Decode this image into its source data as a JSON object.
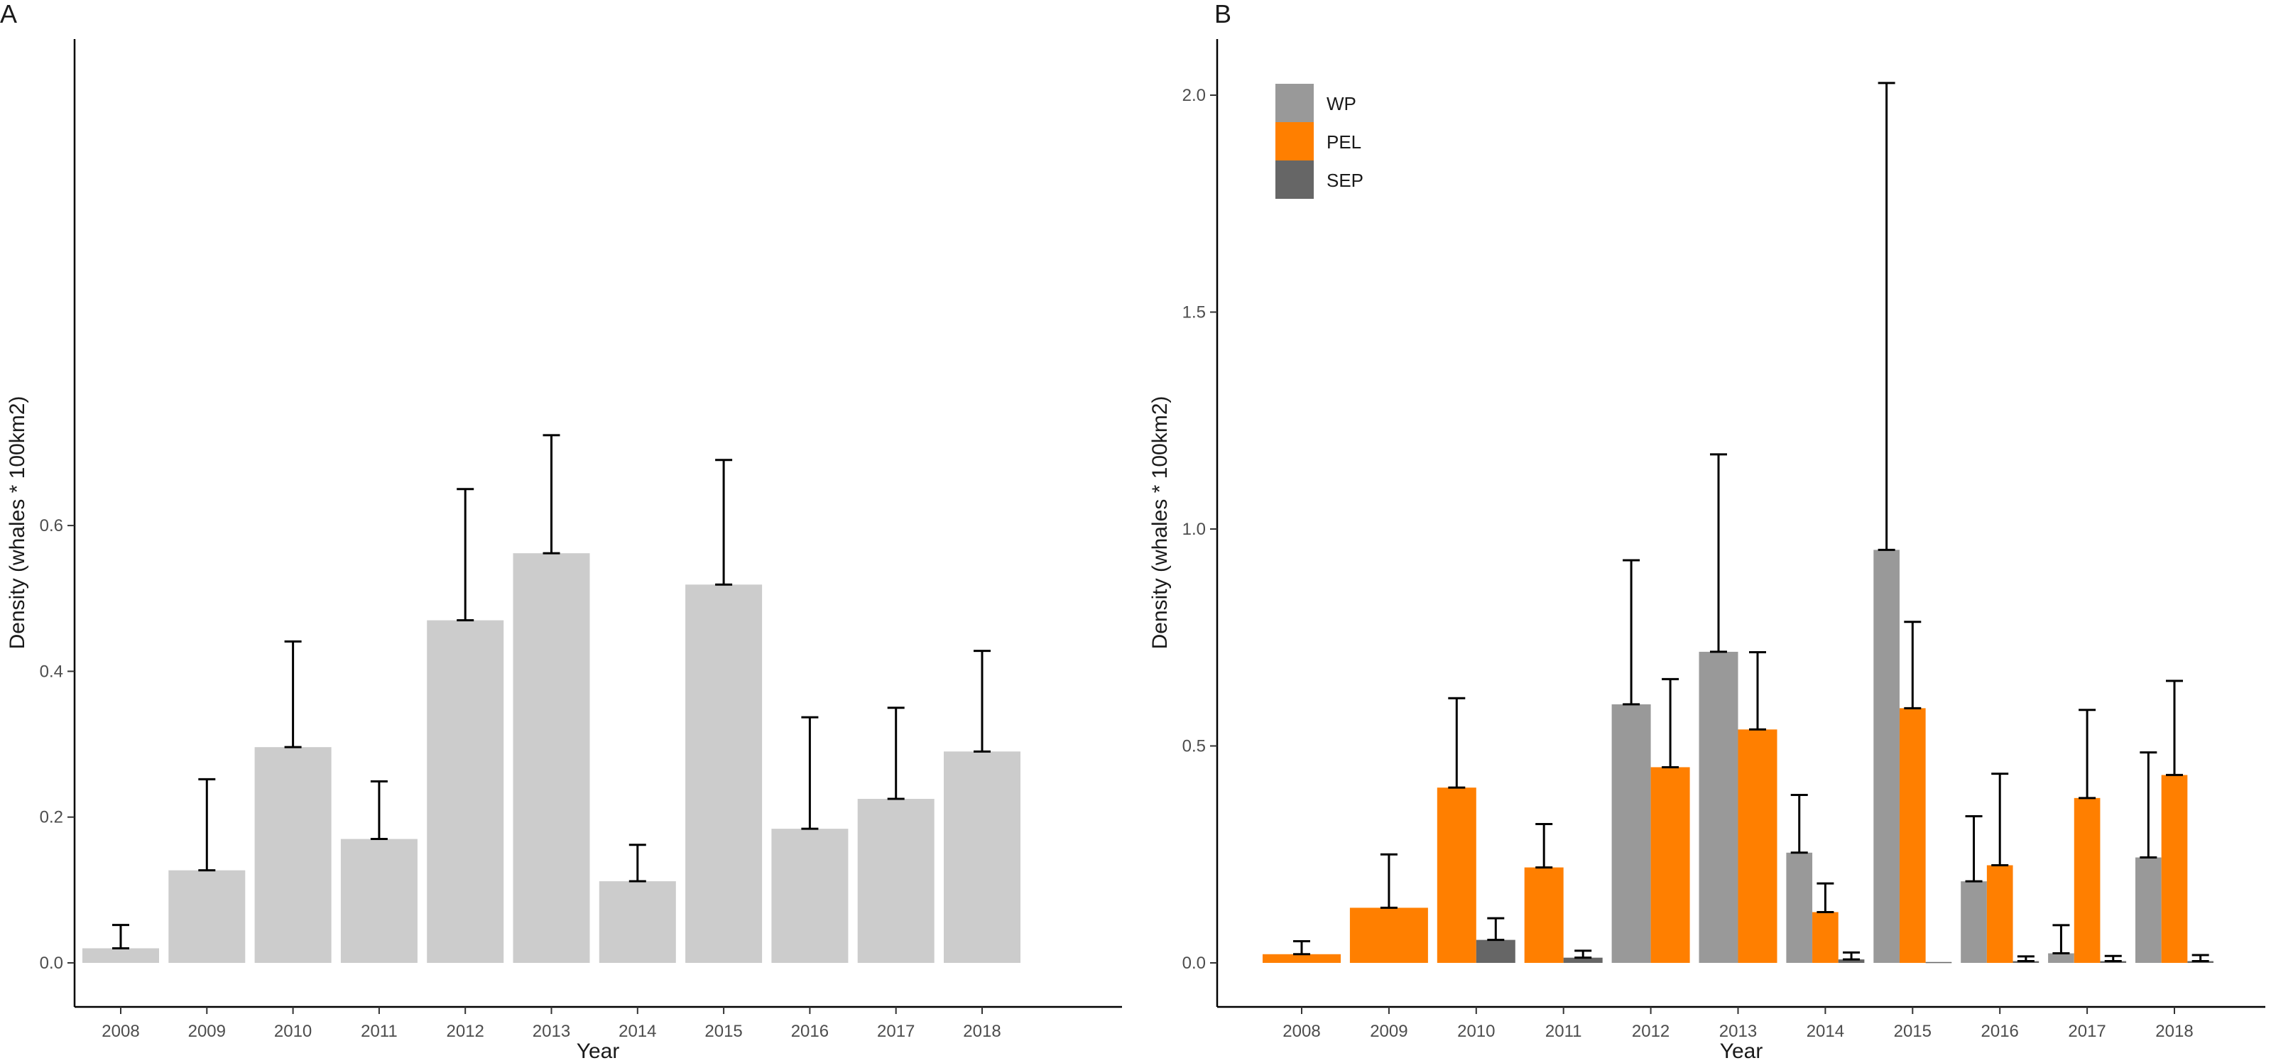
{
  "chart_data": [
    {
      "panel": "A",
      "type": "bar",
      "xlabel": "Year",
      "ylabel": "Density (whales * 100km2)",
      "categories": [
        "2008",
        "2009",
        "2010",
        "2011",
        "2012",
        "2013",
        "2014",
        "2015",
        "2016",
        "2017",
        "2018"
      ],
      "values": [
        0.02,
        0.127,
        0.296,
        0.17,
        0.47,
        0.562,
        0.112,
        0.519,
        0.184,
        0.225,
        0.29
      ],
      "errors_upper": [
        0.052,
        0.252,
        0.441,
        0.249,
        0.65,
        0.724,
        0.162,
        0.69,
        0.337,
        0.35,
        0.428
      ],
      "ylim": [
        0,
        0.74
      ],
      "yticks": [
        0.0,
        0.2,
        0.4,
        0.6
      ],
      "ytick_labels": [
        "0.0",
        "0.2",
        "0.4",
        "0.6"
      ],
      "bar_color": "#cccccc",
      "grid": false,
      "legend": "none"
    },
    {
      "panel": "B",
      "type": "bar",
      "xlabel": "Year",
      "ylabel": "Density (whales * 100km2)",
      "categories": [
        "2008",
        "2009",
        "2010",
        "2011",
        "2012",
        "2013",
        "2014",
        "2015",
        "2016",
        "2017",
        "2018"
      ],
      "series": [
        {
          "name": "WP",
          "color": "#999999",
          "values": [
            null,
            null,
            null,
            null,
            0.596,
            0.717,
            0.254,
            0.952,
            0.188,
            0.022,
            0.243
          ],
          "errors_upper": [
            null,
            null,
            null,
            null,
            0.928,
            1.172,
            0.387,
            2.028,
            0.338,
            0.087,
            0.485
          ]
        },
        {
          "name": "PEL",
          "color": "#ff7f00",
          "values": [
            0.02,
            0.127,
            0.404,
            0.22,
            0.451,
            0.538,
            0.117,
            0.587,
            0.225,
            0.38,
            0.433
          ],
          "errors_upper": [
            0.05,
            0.25,
            0.61,
            0.32,
            0.654,
            0.716,
            0.183,
            0.786,
            0.436,
            0.583,
            0.65
          ]
        },
        {
          "name": "SEP",
          "color": "#666666",
          "values": [
            null,
            null,
            0.053,
            0.012,
            null,
            null,
            0.008,
            0.002,
            0.004,
            0.004,
            0.004
          ],
          "errors_upper": [
            null,
            null,
            0.103,
            0.028,
            null,
            null,
            0.024,
            null,
            0.015,
            0.016,
            0.018
          ]
        }
      ],
      "ylim": [
        0,
        2.1
      ],
      "yticks": [
        0.0,
        0.5,
        1.0,
        1.5,
        2.0
      ],
      "ytick_labels": [
        "0.0",
        "0.5",
        "1.0",
        "1.5",
        "2.0"
      ],
      "grid": false,
      "legend": "top-left"
    }
  ]
}
